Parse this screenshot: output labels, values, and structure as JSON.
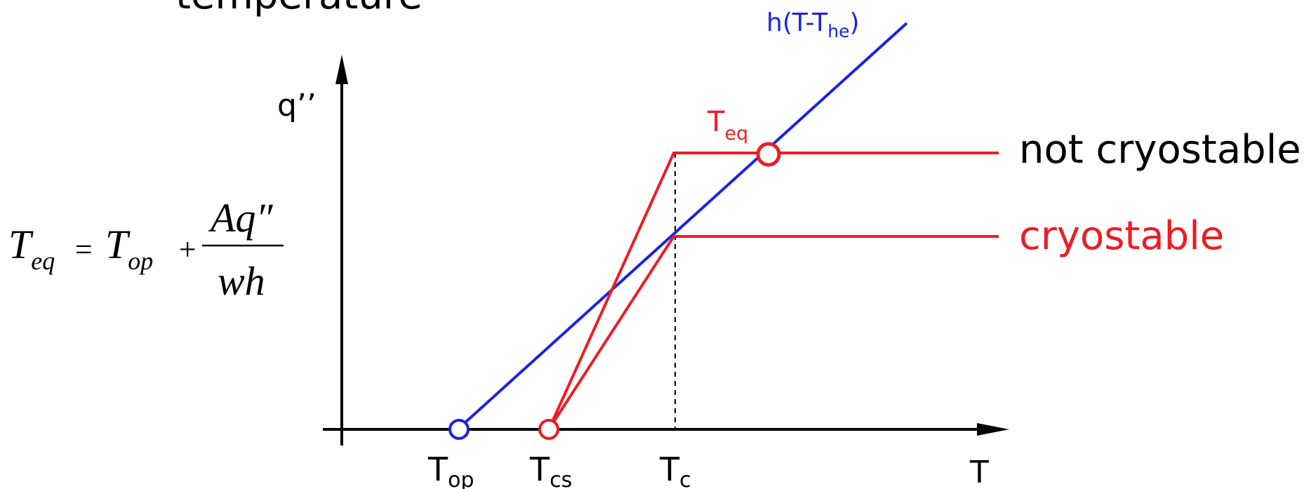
{
  "slide": {
    "title_fragment": "temperature"
  },
  "axes": {
    "y_label": "q’’",
    "x_label": "T"
  },
  "ticks": {
    "top": {
      "main": "T",
      "sub": "op"
    },
    "tcs": {
      "main": "T",
      "sub": "cs"
    },
    "tc": {
      "main": "T",
      "sub": "c"
    }
  },
  "curves": {
    "cooling_line": {
      "main": "h(T-T",
      "sub": "he",
      "close": ")"
    },
    "teq_label": {
      "main": "T",
      "sub": "eq"
    },
    "not_cryostable": "not cryostable",
    "cryostable": "cryostable"
  },
  "equation": {
    "lhs_main": "T",
    "lhs_sub": "eq",
    "equals": "=",
    "rhs_main": "T",
    "rhs_sub": "op",
    "plus": "+",
    "numerator": "Aq″",
    "denominator": "wh"
  },
  "colors": {
    "axis": "#000000",
    "cooling": "#1a22e6",
    "heating": "#ee1c24",
    "background": "#ffffff"
  }
}
